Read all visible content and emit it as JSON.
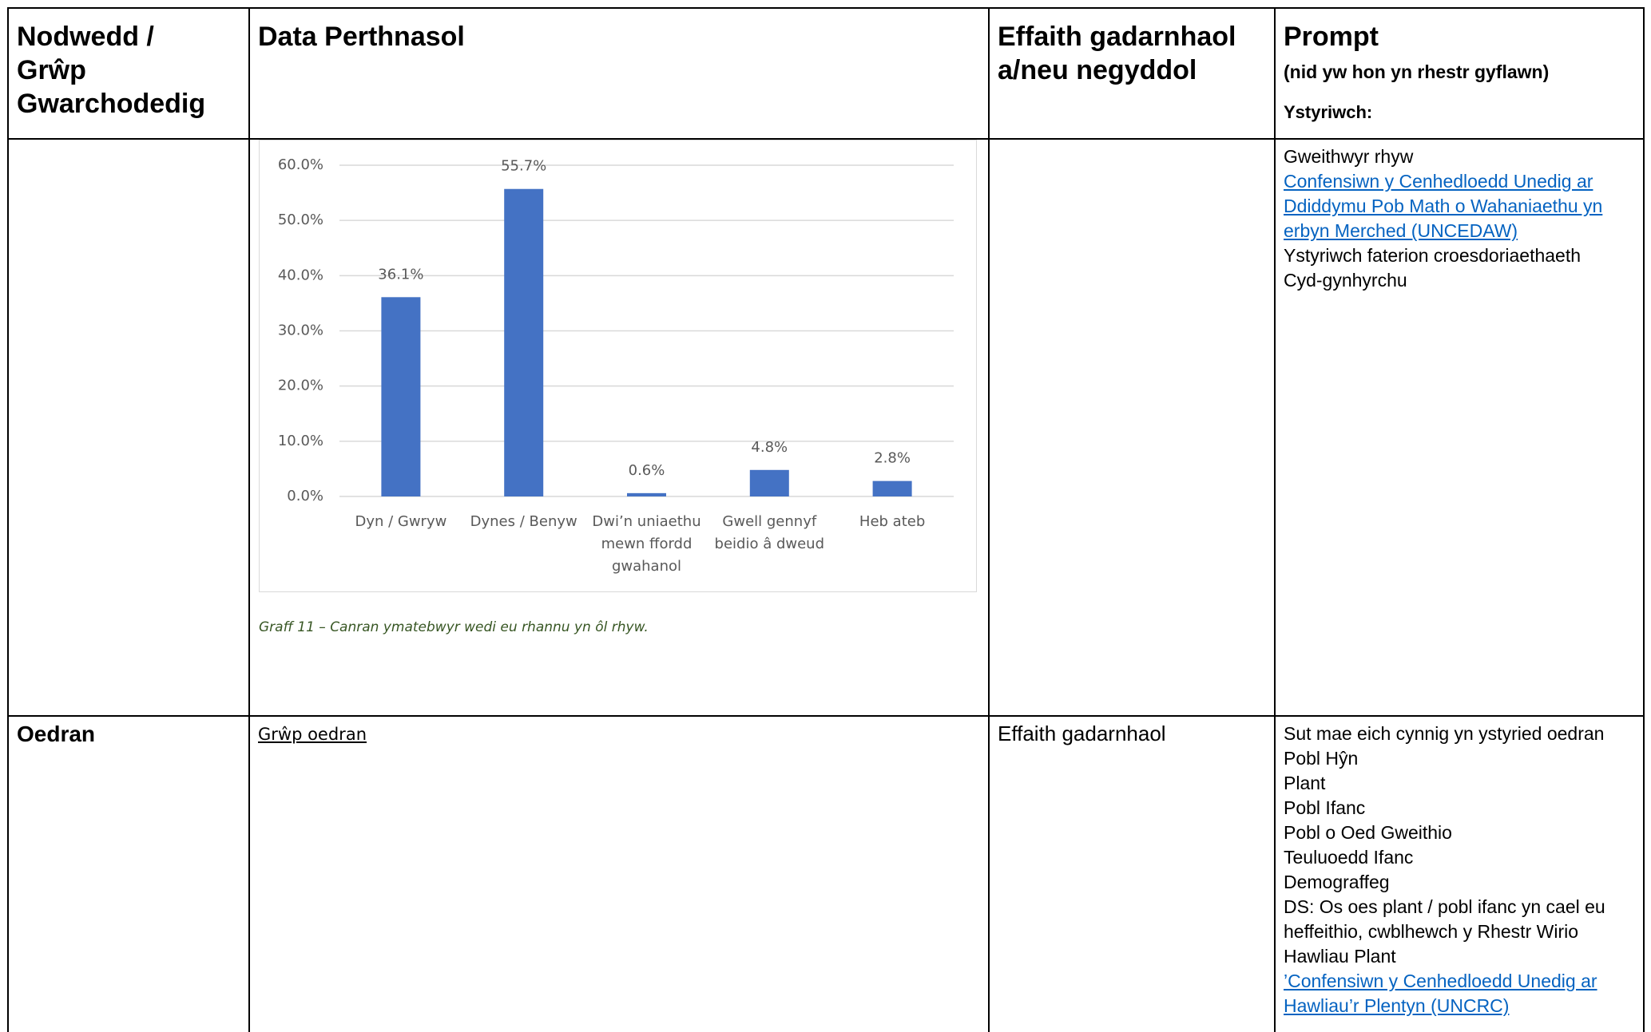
{
  "table": {
    "header": {
      "characteristic": "Nodwedd / Grŵp Gwarchodedig",
      "data": "Data Perthnasol",
      "impact": "Effaith gadarnhaol a/neu negyddol",
      "prompt": "Prompt",
      "prompt_note": "(nid yw hon yn rhestr gyflawn)",
      "prompt_consider": "Ystyriwch:"
    },
    "rows": [
      {
        "caption": "Graff 11 – Canran ymatebwyr wedi eu rhannu yn ôl rhyw.",
        "prompt": [
          {
            "text": "Gweithwyr rhyw"
          },
          {
            "text": "Confensiwn y Cenhedloedd Unedig ar Ddiddymu Pob Math o Wahaniaethu yn erbyn Merched (UNCEDAW)",
            "link": true
          },
          {
            "text": "Ystyriwch faterion croesdoriaethaeth"
          },
          {
            "text": "Cyd-gynhyrchu"
          }
        ]
      },
      {
        "characteristic": "Oedran",
        "data": "Grŵp oedran",
        "impact": "Effaith gadarnhaol",
        "prompt": [
          {
            "text": "Sut mae eich cynnig yn ystyried oedran"
          },
          {
            "text": "Pobl Hŷn"
          },
          {
            "text": "Plant"
          },
          {
            "text": "Pobl Ifanc"
          },
          {
            "text": "Pobl o Oed Gweithio"
          },
          {
            "text": "Teuluoedd Ifanc"
          },
          {
            "text": "Demograffeg"
          },
          {
            "text": "DS: Os oes plant  / pobl ifanc yn cael eu heffeithio, cwblhewch y Rhestr Wirio Hawliau Plant"
          },
          {
            "text": "’Confensiwn y Cenhedloedd Unedig ar Hawliau’r Plentyn (UNCRC)",
            "link": true
          }
        ]
      }
    ]
  },
  "chart_data": {
    "type": "bar",
    "categories": [
      "Dyn / Gwryw",
      "Dynes / Benyw",
      "Dwi’n uniaethu mewn ffordd gwahanol",
      "Gwell gennyf beidio â dweud",
      "Heb ateb"
    ],
    "values": [
      36.1,
      55.7,
      0.6,
      4.8,
      2.8
    ],
    "value_labels": [
      "36.1%",
      "55.7%",
      "0.6%",
      "4.8%",
      "2.8%"
    ],
    "color": "#4472c4",
    "ylim": [
      0,
      60
    ],
    "yticks": [
      {
        "value": 0,
        "label": "0.0%"
      },
      {
        "value": 10,
        "label": "10.0%"
      },
      {
        "value": 20,
        "label": "20.0%"
      },
      {
        "value": 30,
        "label": "30.0%"
      },
      {
        "value": 40,
        "label": "40.0%"
      },
      {
        "value": 50,
        "label": "50.0%"
      },
      {
        "value": 60,
        "label": "60.0%"
      }
    ],
    "grid": true
  }
}
